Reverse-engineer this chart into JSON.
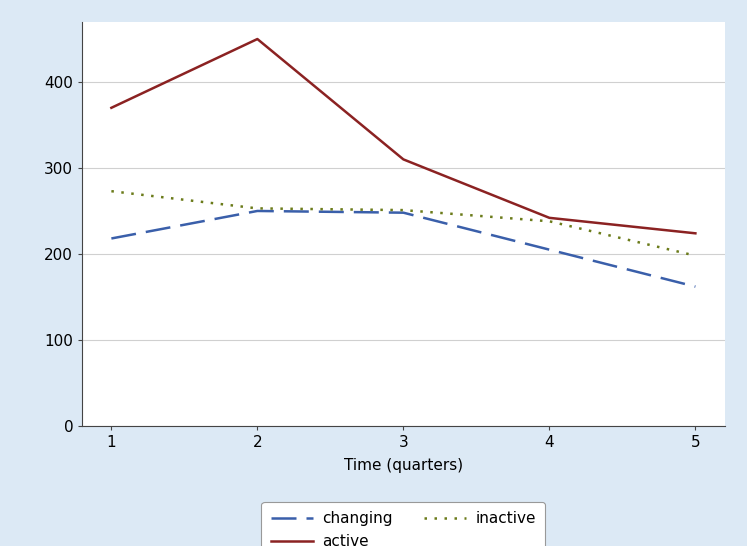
{
  "x": [
    1,
    2,
    3,
    4,
    5
  ],
  "changing": [
    218,
    250,
    248,
    205,
    162
  ],
  "active": [
    370,
    450,
    310,
    242,
    224
  ],
  "inactive": [
    273,
    253,
    251,
    238,
    198
  ],
  "xlabel": "Time (quarters)",
  "xlim": [
    0.8,
    5.2
  ],
  "ylim": [
    0,
    470
  ],
  "yticks": [
    0,
    100,
    200,
    300,
    400
  ],
  "xticks": [
    1,
    2,
    3,
    4,
    5
  ],
  "background_color": "#dce9f5",
  "plot_bg_color": "#ffffff",
  "changing_color": "#3a5faa",
  "active_color": "#8b2222",
  "inactive_color": "#6b7b1a",
  "grid_color": "#d0d0d0"
}
